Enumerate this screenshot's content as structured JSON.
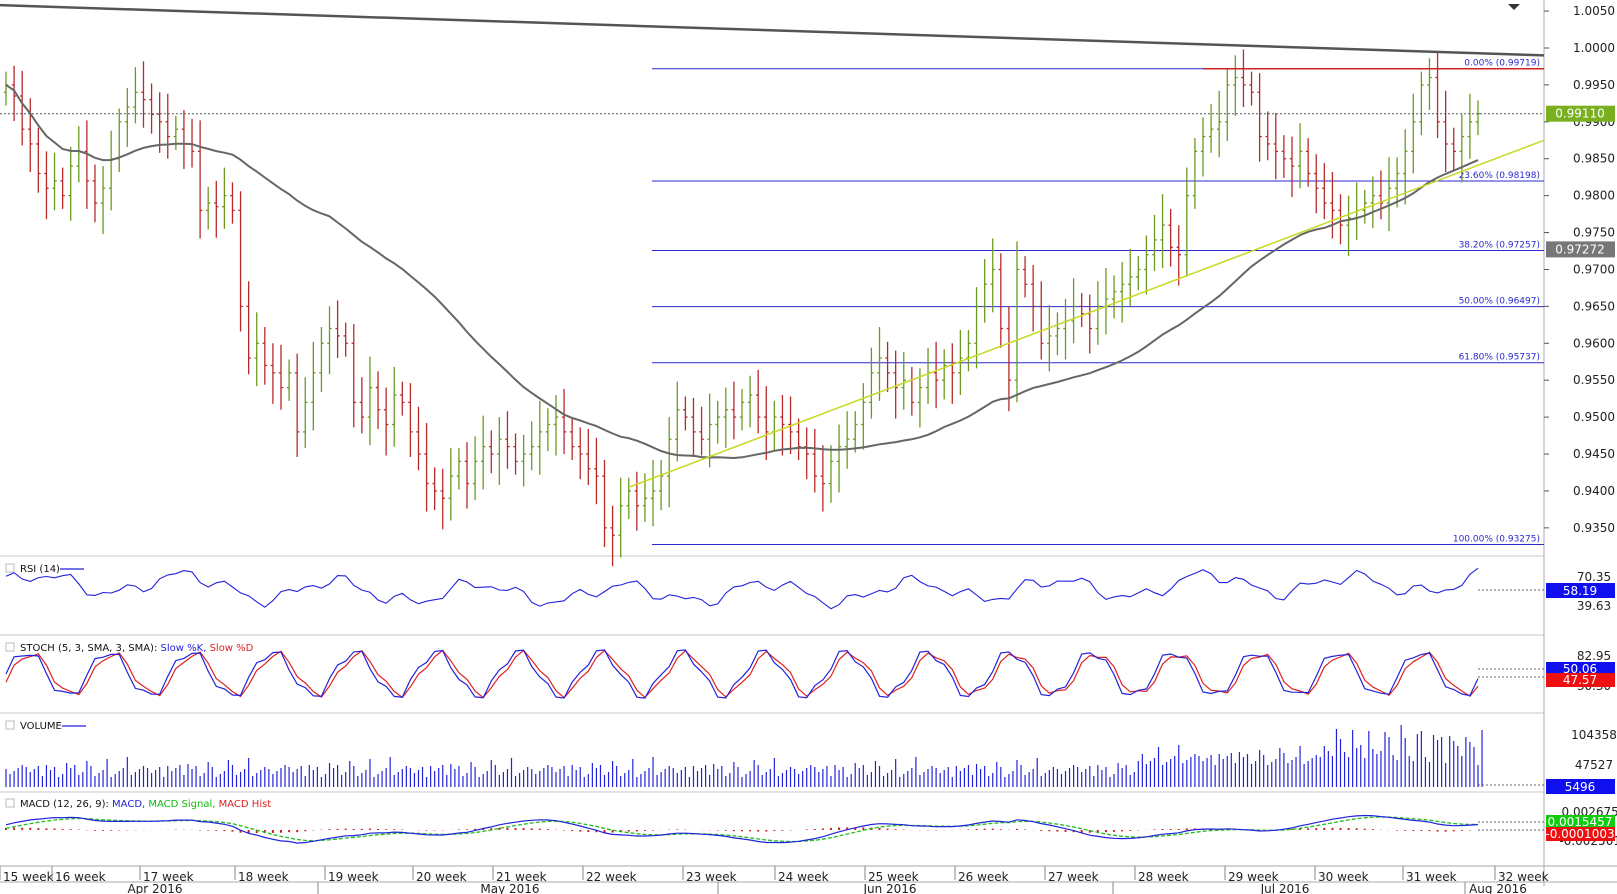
{
  "chart_data": {
    "type": "candlestick",
    "main": {
      "price_ticks": [
        "1.0050",
        "1.0000",
        "0.9950",
        "0.9900",
        "0.9850",
        "0.9800",
        "0.9750",
        "0.9700",
        "0.9650",
        "0.9600",
        "0.9550",
        "0.9500",
        "0.9450",
        "0.9400",
        "0.9350"
      ],
      "ylim": [
        0.932,
        1.0065
      ],
      "current_price": "0.99110",
      "ma_price": "0.97272",
      "fib_levels": [
        {
          "label": "0.00% (0.99719)",
          "value": 0.99719
        },
        {
          "label": "23.60% (0.98198)",
          "value": 0.98198
        },
        {
          "label": "38.20% (0.97257)",
          "value": 0.97257
        },
        {
          "label": "50.00% (0.96497)",
          "value": 0.96497
        },
        {
          "label": "61.80% (0.95737)",
          "value": 0.95737
        },
        {
          "label": "100.00% (0.93275)",
          "value": 0.93275
        }
      ],
      "closes": [
        0.995,
        0.9935,
        0.989,
        0.987,
        0.983,
        0.981,
        0.982,
        0.98,
        0.984,
        0.986,
        0.982,
        0.979,
        0.981,
        0.985,
        0.99,
        0.992,
        0.994,
        0.993,
        0.991,
        0.99,
        0.988,
        0.989,
        0.987,
        0.986,
        0.978,
        0.979,
        0.9785,
        0.98,
        0.978,
        0.965,
        0.958,
        0.96,
        0.957,
        0.956,
        0.954,
        0.956,
        0.948,
        0.952,
        0.956,
        0.96,
        0.962,
        0.961,
        0.96,
        0.952,
        0.95,
        0.954,
        0.951,
        0.949,
        0.953,
        0.952,
        0.948,
        0.945,
        0.941,
        0.94,
        0.939,
        0.942,
        0.944,
        0.941,
        0.944,
        0.946,
        0.945,
        0.947,
        0.946,
        0.944,
        0.945,
        0.946,
        0.948,
        0.949,
        0.95,
        0.948,
        0.946,
        0.945,
        0.943,
        0.942,
        0.935,
        0.934,
        0.938,
        0.94,
        0.938,
        0.939,
        0.94,
        0.942,
        0.947,
        0.951,
        0.95,
        0.948,
        0.947,
        0.949,
        0.95,
        0.951,
        0.95,
        0.952,
        0.953,
        0.95,
        0.948,
        0.95,
        0.949,
        0.948,
        0.946,
        0.945,
        0.942,
        0.941,
        0.944,
        0.946,
        0.947,
        0.949,
        0.952,
        0.956,
        0.958,
        0.956,
        0.954,
        0.955,
        0.952,
        0.954,
        0.956,
        0.955,
        0.957,
        0.956,
        0.958,
        0.96,
        0.965,
        0.968,
        0.97,
        0.962,
        0.955,
        0.97,
        0.968,
        0.965,
        0.96,
        0.961,
        0.962,
        0.963,
        0.965,
        0.964,
        0.962,
        0.965,
        0.966,
        0.967,
        0.968,
        0.969,
        0.97,
        0.972,
        0.974,
        0.976,
        0.973,
        0.972,
        0.98,
        0.986,
        0.988,
        0.989,
        0.99,
        0.995,
        0.996,
        0.995,
        0.994,
        0.988,
        0.987,
        0.986,
        0.985,
        0.984,
        0.986,
        0.983,
        0.981,
        0.979,
        0.978,
        0.976,
        0.977,
        0.978,
        0.979,
        0.98,
        0.979,
        0.981,
        0.983,
        0.986,
        0.99,
        0.995,
        0.996,
        0.99,
        0.987,
        0.986,
        0.988,
        0.99,
        0.9911
      ]
    },
    "rsi": {
      "title": "RSI (14)",
      "ticks": [
        "70.35",
        "39.63"
      ],
      "value": "58.19"
    },
    "stoch": {
      "title": "STOCH (5, 3, SMA, 3, SMA):",
      "k_label": "Slow %K,",
      "d_label": "Slow %D",
      "ticks": [
        "82.95",
        "30.30"
      ],
      "k_value": "50.06",
      "d_value": "47.57"
    },
    "volume": {
      "title": "VOLUME",
      "ticks": [
        "104358",
        "47527"
      ],
      "value": "5496"
    },
    "macd": {
      "title": "MACD (12, 26, 9):",
      "macd_label": "MACD,",
      "signal_label": "MACD Signal,",
      "hist_label": "MACD Hist",
      "ticks": [
        "0.0026752",
        "-0.0025013"
      ],
      "macd_value": "0.0015457",
      "hist_value": "-0.0001003"
    },
    "x_weeks": [
      "15 week",
      "16 week",
      "17 week",
      "18 week",
      "19 week",
      "20 week",
      "21 week",
      "22 week",
      "23 week",
      "24 week",
      "25 week",
      "26 week",
      "27 week",
      "28 week",
      "29 week",
      "30 week",
      "31 week",
      "32 week"
    ],
    "x_months": [
      "Apr 2016",
      "May 2016",
      "Jun 2016",
      "Jul 2016",
      "Aug 2016"
    ]
  }
}
